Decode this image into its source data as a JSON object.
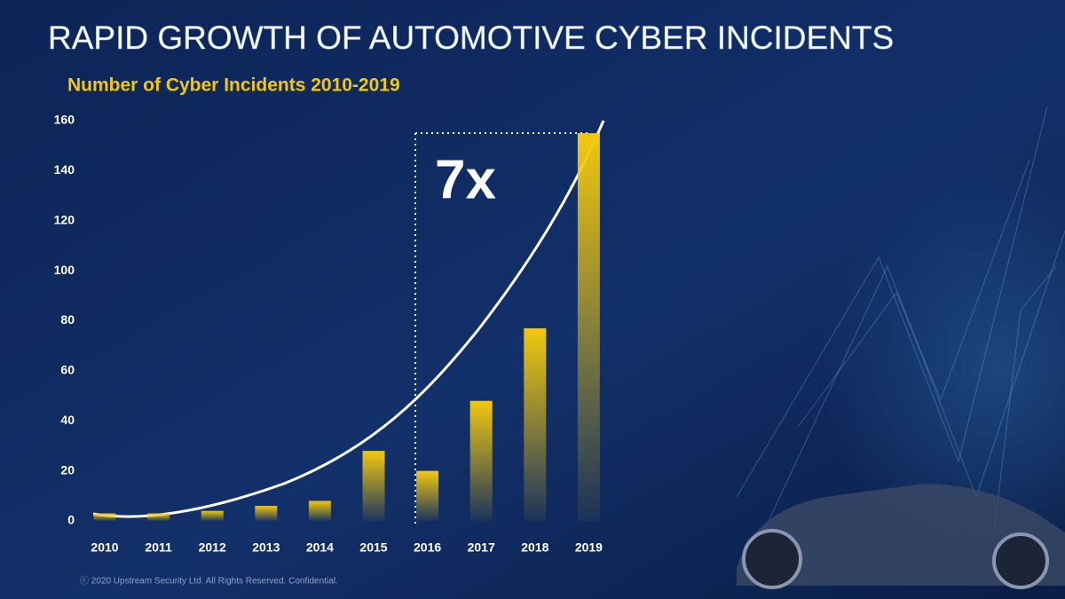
{
  "chart_data": {
    "type": "bar",
    "title": "RAPID GROWTH  OF AUTOMOTIVE CYBER INCIDENTS",
    "subtitle": "Number of Cyber Incidents  2010-2019",
    "categories": [
      "2010",
      "2011",
      "2012",
      "2013",
      "2014",
      "2015",
      "2016",
      "2017",
      "2018",
      "2019"
    ],
    "values": [
      3,
      3,
      4,
      6,
      8,
      28,
      20,
      48,
      77,
      155
    ],
    "color": "#f2c80f",
    "ylim": [
      0,
      160
    ],
    "yticks": [
      0,
      20,
      40,
      60,
      80,
      100,
      120,
      140,
      160
    ],
    "grid": false,
    "annotation": "7x"
  },
  "footer": "ⓒ 2020 Upstream Security Ltd. All Rights Reserved. Confidential."
}
